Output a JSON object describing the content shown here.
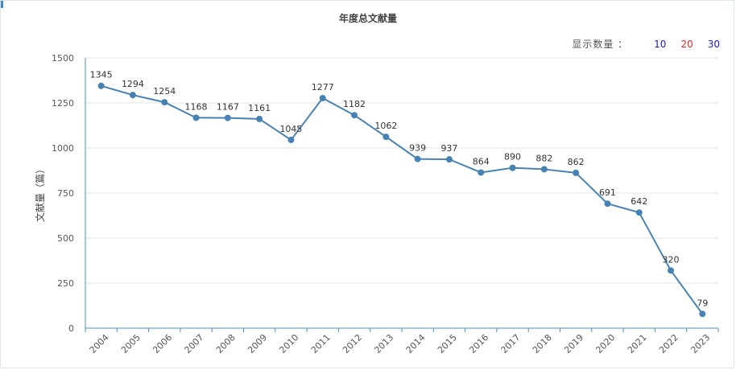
{
  "count_selector": {
    "label": "显示数量 ：",
    "options": [
      {
        "label": "10",
        "color": "#1a1acc"
      },
      {
        "label": "20",
        "color": "#d42a2a"
      },
      {
        "label": "30",
        "color": "#1a1acc"
      }
    ]
  },
  "chart_data": {
    "type": "line",
    "title": "年度总文献量",
    "xlabel": "",
    "ylabel": "文献量（篇）",
    "categories": [
      "2004",
      "2005",
      "2006",
      "2007",
      "2008",
      "2009",
      "2010",
      "2011",
      "2012",
      "2013",
      "2014",
      "2015",
      "2016",
      "2017",
      "2018",
      "2019",
      "2020",
      "2021",
      "2022",
      "2023"
    ],
    "series": [
      {
        "values": [
          1345,
          1294,
          1254,
          1168,
          1167,
          1161,
          1045,
          1277,
          1182,
          1062,
          939,
          937,
          864,
          890,
          882,
          862,
          691,
          642,
          320,
          79
        ],
        "color": "#4682b4"
      }
    ],
    "ylim": [
      0,
      1500
    ],
    "yticks": [
      "0",
      "250",
      "500",
      "750",
      "1000",
      "1250",
      "1500"
    ],
    "grid": true,
    "legend": "none"
  }
}
